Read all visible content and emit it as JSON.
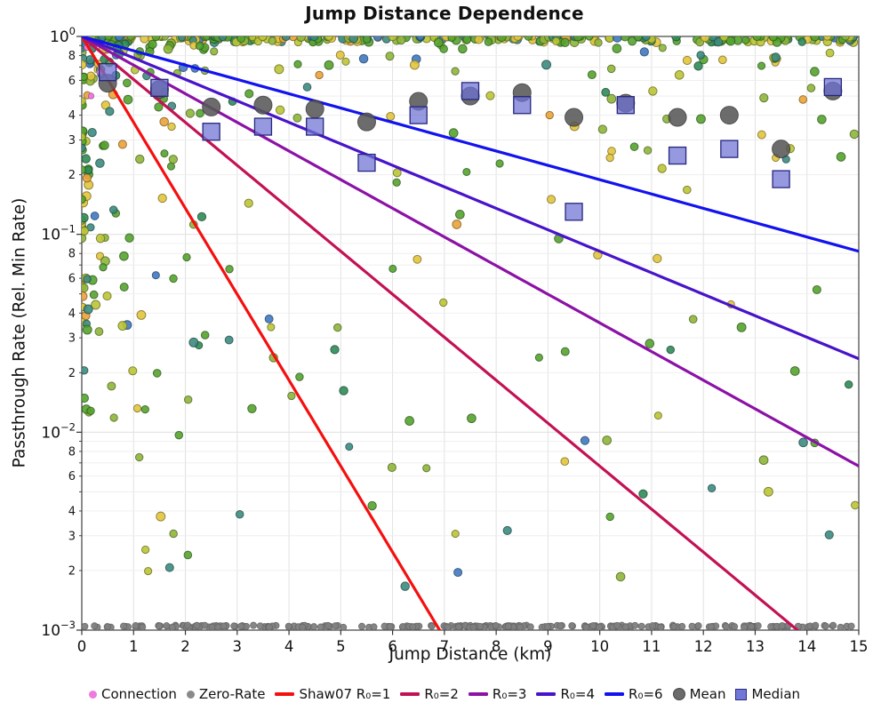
{
  "chart_data": {
    "type": "scatter",
    "title": "Jump Distance Dependence",
    "xlabel": "Jump Distance (km)",
    "ylabel": "Passthrough Rate (Rel. Min Rate)",
    "xlim": [
      0,
      15
    ],
    "x_ticks": [
      0,
      1,
      2,
      3,
      4,
      5,
      6,
      7,
      8,
      9,
      10,
      11,
      12,
      13,
      14,
      15
    ],
    "y_scale": "log",
    "ylim_log10": [
      -3,
      0
    ],
    "y_major_exponents": [
      0,
      -1,
      -2,
      -3
    ],
    "y_minor_labels": [
      8,
      6,
      4,
      3,
      2
    ],
    "grid": {
      "on": true,
      "major_color": "#e2e2e2",
      "minor_color": "#ededed"
    },
    "shaw07_lines": [
      {
        "label": "Shaw07 R₀=1",
        "R0": 1,
        "color": "#f50f0f",
        "model": "y = exp(-x/R0)"
      },
      {
        "label": "R₀=2",
        "R0": 2,
        "color": "#c31254",
        "model": "y = exp(-x/R0)"
      },
      {
        "label": "R₀=3",
        "R0": 3,
        "color": "#8c12a6",
        "model": "y = exp(-x/R0)"
      },
      {
        "label": "R₀=4",
        "R0": 4,
        "color": "#4814c9",
        "model": "y = exp(-x/R0)"
      },
      {
        "label": "R₀=6",
        "R0": 6,
        "color": "#1212ef",
        "model": "y = exp(-x/R0)"
      }
    ],
    "mean_series": {
      "label": "Mean",
      "marker": "circle",
      "color": "#585858",
      "edge": "#383838",
      "x": [
        0.5,
        1.5,
        2.5,
        3.5,
        4.5,
        5.5,
        6.5,
        7.5,
        8.5,
        9.5,
        10.5,
        11.5,
        12.5,
        13.5,
        14.5
      ],
      "y": [
        0.58,
        0.54,
        0.44,
        0.45,
        0.43,
        0.37,
        0.47,
        0.5,
        0.52,
        0.39,
        0.46,
        0.39,
        0.4,
        0.27,
        0.53
      ]
    },
    "median_series": {
      "label": "Median",
      "marker": "square",
      "color": "#6e72d2",
      "edge": "#26267e",
      "x": [
        0.5,
        1.5,
        2.5,
        3.5,
        4.5,
        5.5,
        6.5,
        7.5,
        8.5,
        9.5,
        10.5,
        11.5,
        12.5,
        13.5,
        14.5
      ],
      "y": [
        0.66,
        0.55,
        0.33,
        0.35,
        0.35,
        0.23,
        0.4,
        0.53,
        0.45,
        0.13,
        0.45,
        0.25,
        0.27,
        0.19,
        0.555
      ]
    },
    "zero_rate": {
      "label": "Zero-Rate",
      "color": "#808080",
      "n": 235,
      "ly": -2.981,
      "jitter": 0.005,
      "radius": 3.6,
      "gaps": [
        [
          5.05,
          5.33
        ],
        [
          6.55,
          6.73
        ],
        [
          10.05,
          10.18
        ],
        [
          13.08,
          13.22
        ]
      ]
    },
    "connection": {
      "label": "Connection",
      "color": "#ee7ae0",
      "radius": 3.2,
      "points": [
        [
          0.1,
          0.88
        ],
        [
          0.35,
          0.66
        ],
        [
          0.18,
          0.5
        ]
      ]
    },
    "scatter_cloud": {
      "note": "individual simulated passthrough samples, colors random from palette",
      "seed": 42,
      "alpha": 0.9,
      "radius_min": 4.0,
      "radius_jitter": 1.0,
      "palette": [
        {
          "color": "#55a42e",
          "weight": 0.28
        },
        {
          "color": "#8fb63a",
          "weight": 0.16
        },
        {
          "color": "#bcc636",
          "weight": 0.14
        },
        {
          "color": "#e2c63e",
          "weight": 0.13
        },
        {
          "color": "#eca438",
          "weight": 0.04
        },
        {
          "color": "#3c8b80",
          "weight": 0.13
        },
        {
          "color": "#2f8b58",
          "weight": 0.07
        },
        {
          "color": "#4179c1",
          "weight": 0.05
        }
      ],
      "components": [
        {
          "name": "top-band",
          "n": 160,
          "x": {
            "type": "uniform",
            "min": 0,
            "max": 15
          },
          "ly": {
            "type": "uniform",
            "min": -0.03,
            "max": 0
          }
        },
        {
          "name": "upper-decay",
          "n": 240,
          "x": {
            "type": "uniform",
            "min": 0,
            "max": 15
          },
          "ly": {
            "type": "power",
            "scale": -2.85,
            "pow": 4.8,
            "offset": 0
          }
        },
        {
          "name": "left-cluster",
          "n": 140,
          "x": {
            "type": "power",
            "scale": 2.4,
            "pow": 2.8,
            "offset": 0
          },
          "ly": {
            "type": "power",
            "scale": -1.9,
            "pow": 2.0,
            "offset": -0.04
          }
        },
        {
          "name": "deep-sparse",
          "n": 14,
          "x": {
            "type": "uniform",
            "min": 0,
            "max": 15
          },
          "ly": {
            "type": "uniform",
            "min": -2.7,
            "max": -1.4
          }
        }
      ]
    }
  },
  "legend": {
    "items": [
      {
        "label": "Connection",
        "swatch": "dot",
        "color": "#ee7ae0"
      },
      {
        "label": "Zero-Rate",
        "swatch": "dot",
        "color": "#8a8a8a"
      },
      {
        "label": "Shaw07 R₀=1",
        "swatch": "line",
        "color": "#f50f0f"
      },
      {
        "label": "R₀=2",
        "swatch": "line",
        "color": "#c31254"
      },
      {
        "label": "R₀=3",
        "swatch": "line",
        "color": "#8c12a6"
      },
      {
        "label": "R₀=4",
        "swatch": "line",
        "color": "#4814c9"
      },
      {
        "label": "R₀=6",
        "swatch": "line",
        "color": "#1212ef"
      },
      {
        "label": "Mean",
        "swatch": "circle",
        "color": "#6b6b6b"
      },
      {
        "label": "Median",
        "swatch": "square",
        "color": "#7276d6",
        "edge": "#2a2a80"
      }
    ]
  }
}
